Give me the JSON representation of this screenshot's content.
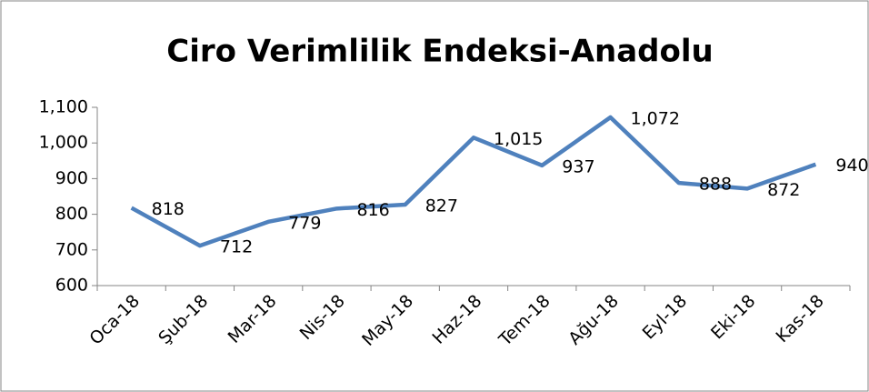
{
  "chart_data": {
    "type": "line",
    "title": "Ciro Verimlilik Endeksi-Anadolu",
    "categories": [
      "Oca-18",
      "Şub-18",
      "Mar-18",
      "Nis-18",
      "May-18",
      "Haz-18",
      "Tem-18",
      "Ağu-18",
      "Eyl-18",
      "Eki-18",
      "Kas-18"
    ],
    "series": [
      {
        "name": "Ciro Verimlilik Endeksi-Anadolu",
        "color": "#4f81bd",
        "values": [
          818,
          712,
          779,
          816,
          827,
          1015,
          937,
          1072,
          888,
          872,
          940
        ],
        "value_labels": [
          "818",
          "712",
          "779",
          "816",
          "827",
          "1,015",
          "937",
          "1,072",
          "888",
          "872",
          "940"
        ]
      }
    ],
    "ylim": [
      600,
      1100
    ],
    "yticks": [
      600,
      700,
      800,
      900,
      {
        "value": 1000,
        "label": "1,000"
      },
      {
        "value": 1100,
        "label": "1,100"
      }
    ]
  }
}
